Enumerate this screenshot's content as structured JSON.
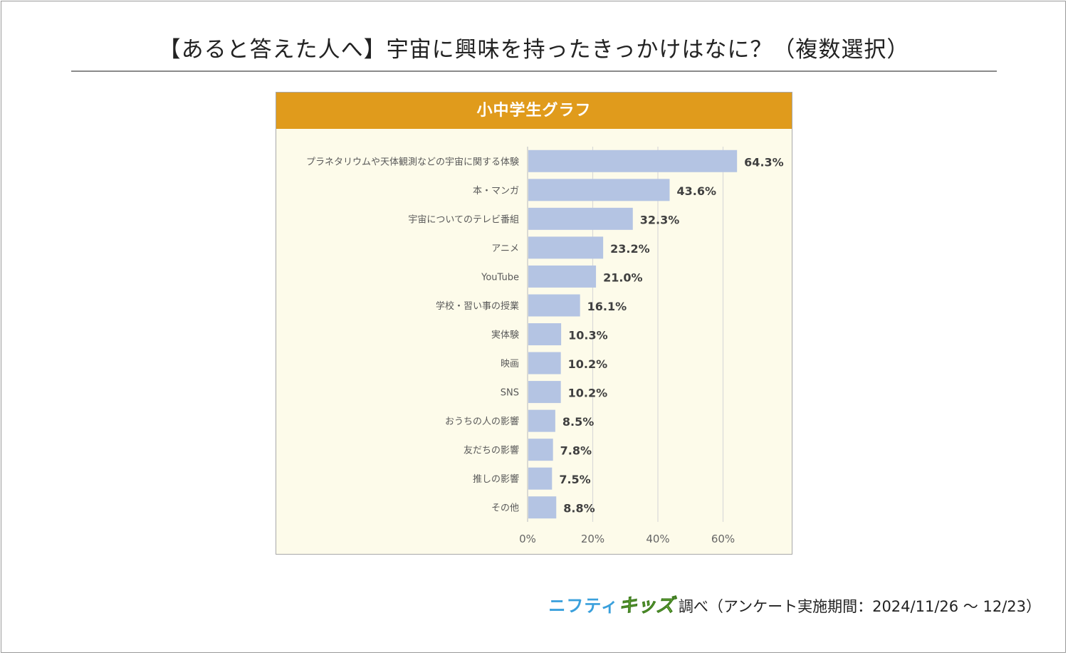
{
  "page": {
    "title": "【あると答えた人へ】宇宙に興味を持ったきっかけはなに？（複数選択）"
  },
  "footer": {
    "logo_part1": "ニフティ",
    "logo_part2": "キッズ",
    "source": "調べ（アンケート実施期間：2024/11/26 ～ 12/23）"
  },
  "colors": {
    "header": "#e09b1c",
    "bar": "#b4c4e3",
    "plot_bg": "#fdfbea",
    "logo1": "#3aa0dc",
    "logo2": "#7cc242"
  },
  "chart_data": {
    "type": "bar",
    "orientation": "horizontal",
    "title": "小中学生グラフ",
    "categories": [
      "プラネタリウムや天体観測などの宇宙に関する体験",
      "本・マンガ",
      "宇宙についてのテレビ番組",
      "アニメ",
      "YouTube",
      "学校・習い事の授業",
      "実体験",
      "映画",
      "SNS",
      "おうちの人の影響",
      "友だちの影響",
      "推しの影響",
      "その他"
    ],
    "values": [
      64.3,
      43.6,
      32.3,
      23.2,
      21.0,
      16.1,
      10.3,
      10.2,
      10.2,
      8.5,
      7.8,
      7.5,
      8.8
    ],
    "value_labels": [
      "64.3%",
      "43.6%",
      "32.3%",
      "23.2%",
      "21.0%",
      "16.1%",
      "10.3%",
      "10.2%",
      "10.2%",
      "8.5%",
      "7.8%",
      "7.5%",
      "8.8%"
    ],
    "xlim": [
      0,
      80
    ],
    "xticks": [
      0,
      20,
      40,
      60
    ],
    "xtick_labels": [
      "0%",
      "20%",
      "40%",
      "60%"
    ],
    "xlabel": "",
    "ylabel": "",
    "grid": true
  }
}
